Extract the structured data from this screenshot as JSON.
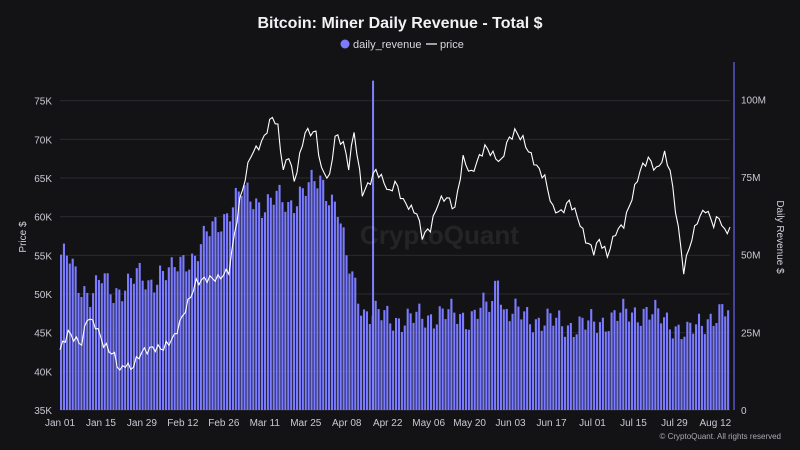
{
  "chart_data": {
    "type": "bar+line",
    "title": "Bitcoin: Miner Daily Revenue - Total $",
    "legend": [
      {
        "name": "daily_revenue",
        "color": "#7b7bff",
        "marker": "dot"
      },
      {
        "name": "price",
        "color": "#ffffff",
        "marker": "line"
      }
    ],
    "y_left": {
      "label": "Price $",
      "ticks": [
        "75K",
        "70K",
        "65K",
        "60K",
        "55K",
        "50K",
        "45K",
        "40K",
        "35K"
      ],
      "range": [
        35000,
        80000
      ]
    },
    "y_right": {
      "label": "Daily Revenue $",
      "ticks": [
        "100M",
        "75M",
        "50M",
        "25M",
        "0"
      ],
      "range": [
        0,
        112000000
      ]
    },
    "x_ticks": [
      "Jan 01",
      "Jan 15",
      "Jan 29",
      "Feb 12",
      "Feb 26",
      "Mar 11",
      "Mar 25",
      "Apr 08",
      "Apr 22",
      "May 06",
      "May 20",
      "Jun 03",
      "Jun 17",
      "Jul 01",
      "Jul 15",
      "Jul 29",
      "Aug 12"
    ],
    "series": [
      {
        "name": "daily_revenue",
        "unit": "M$",
        "anchors": [
          [
            0,
            50
          ],
          [
            3,
            48
          ],
          [
            6,
            40
          ],
          [
            10,
            38
          ],
          [
            14,
            42
          ],
          [
            18,
            37
          ],
          [
            22,
            41
          ],
          [
            26,
            43
          ],
          [
            30,
            40
          ],
          [
            34,
            45
          ],
          [
            38,
            44
          ],
          [
            42,
            48
          ],
          [
            46,
            50
          ],
          [
            50,
            56
          ],
          [
            54,
            60
          ],
          [
            58,
            65
          ],
          [
            62,
            70
          ],
          [
            66,
            68
          ],
          [
            70,
            66
          ],
          [
            74,
            68
          ],
          [
            78,
            66
          ],
          [
            82,
            70
          ],
          [
            86,
            72
          ],
          [
            89,
            74
          ],
          [
            92,
            70
          ],
          [
            95,
            65
          ],
          [
            98,
            48
          ],
          [
            101,
            40
          ],
          [
            104,
            32
          ],
          [
            110,
            30
          ],
          [
            120,
            29
          ],
          [
            130,
            31
          ],
          [
            140,
            30
          ],
          [
            148,
            34
          ],
          [
            150,
            45
          ],
          [
            152,
            32
          ],
          [
            160,
            30
          ],
          [
            170,
            28
          ],
          [
            180,
            27
          ],
          [
            190,
            30
          ],
          [
            200,
            32
          ],
          [
            210,
            28
          ],
          [
            215,
            24
          ],
          [
            222,
            30
          ],
          [
            228,
            31
          ]
        ]
      },
      {
        "name": "price",
        "unit": "$",
        "anchors": [
          [
            0,
            42800
          ],
          [
            3,
            45000
          ],
          [
            6,
            44000
          ],
          [
            8,
            43600
          ],
          [
            10,
            47000
          ],
          [
            13,
            46000
          ],
          [
            16,
            43500
          ],
          [
            20,
            42000
          ],
          [
            22,
            40000
          ],
          [
            24,
            41000
          ],
          [
            26,
            40300
          ],
          [
            30,
            42500
          ],
          [
            34,
            43000
          ],
          [
            38,
            43000
          ],
          [
            42,
            44500
          ],
          [
            46,
            48000
          ],
          [
            50,
            51500
          ],
          [
            54,
            52000
          ],
          [
            58,
            52000
          ],
          [
            62,
            53000
          ],
          [
            66,
            62000
          ],
          [
            70,
            68000
          ],
          [
            74,
            69500
          ],
          [
            78,
            73000
          ],
          [
            80,
            71500
          ],
          [
            82,
            66000
          ],
          [
            84,
            68000
          ],
          [
            86,
            64500
          ],
          [
            90,
            71000
          ],
          [
            94,
            70800
          ],
          [
            96,
            66000
          ],
          [
            99,
            65000
          ],
          [
            101,
            70500
          ],
          [
            104,
            69500
          ],
          [
            106,
            66500
          ],
          [
            108,
            71000
          ],
          [
            111,
            63000
          ],
          [
            113,
            64000
          ],
          [
            116,
            66000
          ],
          [
            119,
            64500
          ],
          [
            121,
            63000
          ],
          [
            123,
            64500
          ],
          [
            126,
            62000
          ],
          [
            129,
            61000
          ],
          [
            131,
            60500
          ],
          [
            133,
            57500
          ],
          [
            136,
            58500
          ],
          [
            139,
            62000
          ],
          [
            142,
            62500
          ],
          [
            145,
            61000
          ],
          [
            148,
            67500
          ],
          [
            151,
            65500
          ],
          [
            153,
            67000
          ],
          [
            156,
            69000
          ],
          [
            159,
            68000
          ],
          [
            162,
            67000
          ],
          [
            164,
            69500
          ],
          [
            167,
            71000
          ],
          [
            170,
            70000
          ],
          [
            172,
            68500
          ],
          [
            175,
            66500
          ],
          [
            178,
            65000
          ],
          [
            181,
            61000
          ],
          [
            184,
            60500
          ],
          [
            187,
            62000
          ],
          [
            190,
            60000
          ],
          [
            193,
            57000
          ],
          [
            196,
            55500
          ],
          [
            198,
            57000
          ],
          [
            201,
            55000
          ],
          [
            204,
            58000
          ],
          [
            207,
            59000
          ],
          [
            210,
            62500
          ],
          [
            213,
            66000
          ],
          [
            216,
            67500
          ],
          [
            219,
            66000
          ],
          [
            222,
            68000
          ],
          [
            224,
            66000
          ],
          [
            227,
            58500
          ],
          [
            229,
            53000
          ],
          [
            231,
            56000
          ],
          [
            234,
            59500
          ],
          [
            237,
            61000
          ],
          [
            240,
            59000
          ],
          [
            242,
            60000
          ],
          [
            244,
            58000
          ],
          [
            246,
            58500
          ]
        ]
      }
    ],
    "watermark": "CryptoQuant",
    "credit": "© CryptoQuant. All rights reserved"
  }
}
